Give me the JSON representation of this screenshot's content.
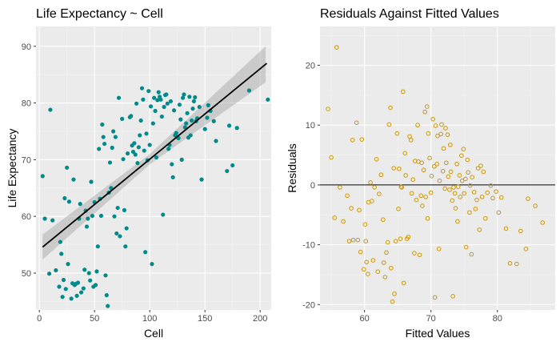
{
  "chart_data": [
    {
      "type": "scatter",
      "title": "Life Expectancy ~ Cell",
      "xlabel": "Cell",
      "ylabel": "Life Expectancy",
      "xlim": [
        -3,
        210
      ],
      "ylim": [
        43.5,
        93.5
      ],
      "xticks": [
        0,
        50,
        100,
        150,
        200
      ],
      "yticks": [
        50,
        60,
        70,
        80,
        90
      ],
      "grid": true,
      "point_color": "#008b8b",
      "fit_line": {
        "x": [
          3,
          206
        ],
        "y": [
          54.6,
          87.0
        ],
        "color": "#000000",
        "band_color": "#999999",
        "band_halfwidth": [
          {
            "x": 3,
            "w": 2.2
          },
          {
            "x": 100,
            "w": 0.9
          },
          {
            "x": 206,
            "w": 3.2
          }
        ]
      },
      "points": [
        [
          3,
          67.1
        ],
        [
          5,
          59.6
        ],
        [
          9,
          49.9
        ],
        [
          10,
          78.8
        ],
        [
          12,
          59.3
        ],
        [
          15,
          50.5
        ],
        [
          18,
          47.6
        ],
        [
          19,
          55.5
        ],
        [
          20,
          53.4
        ],
        [
          21,
          45.8
        ],
        [
          22,
          48.8
        ],
        [
          23,
          63.2
        ],
        [
          24,
          47.2
        ],
        [
          25,
          68.6
        ],
        [
          26,
          51.6
        ],
        [
          27,
          62.6
        ],
        [
          29,
          45.5
        ],
        [
          30,
          48.2
        ],
        [
          31,
          66.5
        ],
        [
          32,
          47.9
        ],
        [
          33,
          48.1
        ],
        [
          34,
          46.0
        ],
        [
          35,
          48.3
        ],
        [
          36,
          59.6
        ],
        [
          37,
          62.2
        ],
        [
          38,
          46.6
        ],
        [
          40,
          47.3
        ],
        [
          41,
          50.6
        ],
        [
          42,
          61.0
        ],
        [
          43,
          58.2
        ],
        [
          44,
          59.6
        ],
        [
          45,
          50.0
        ],
        [
          46,
          48.7
        ],
        [
          47,
          66.1
        ],
        [
          48,
          60.1
        ],
        [
          49,
          47.6
        ],
        [
          50,
          62.5
        ],
        [
          51,
          47.9
        ],
        [
          52,
          50.3
        ],
        [
          53,
          54.7
        ],
        [
          54,
          71.9
        ],
        [
          55,
          63.1
        ],
        [
          56,
          60.1
        ],
        [
          57,
          76.2
        ],
        [
          58,
          74.0
        ],
        [
          59,
          72.8
        ],
        [
          60,
          49.6
        ],
        [
          61,
          46.1
        ],
        [
          62,
          44.2
        ],
        [
          63,
          64.2
        ],
        [
          64,
          69.5
        ],
        [
          65,
          65.0
        ],
        [
          66,
          72.1
        ],
        [
          67,
          75.0
        ],
        [
          68,
          60.0
        ],
        [
          69,
          74.0
        ],
        [
          70,
          57.0
        ],
        [
          71,
          61.5
        ],
        [
          72,
          80.9
        ],
        [
          73,
          56.5
        ],
        [
          75,
          77.2
        ],
        [
          76,
          70.1
        ],
        [
          77,
          61.1
        ],
        [
          78,
          54.7
        ],
        [
          79,
          57.9
        ],
        [
          80,
          71.1
        ],
        [
          82,
          77.5
        ],
        [
          83,
          77.7
        ],
        [
          84,
          72.5
        ],
        [
          85,
          71.4
        ],
        [
          86,
          72.9
        ],
        [
          87,
          70.9
        ],
        [
          88,
          79.9
        ],
        [
          89,
          69.4
        ],
        [
          90,
          72.2
        ],
        [
          91,
          74.3
        ],
        [
          92,
          76.9
        ],
        [
          93,
          82.6
        ],
        [
          94,
          80.6
        ],
        [
          95,
          71.6
        ],
        [
          96,
          53.7
        ],
        [
          97,
          74.6
        ],
        [
          98,
          69.9
        ],
        [
          99,
          82.1
        ],
        [
          100,
          72.6
        ],
        [
          101,
          79.4
        ],
        [
          102,
          51.6
        ],
        [
          103,
          76.4
        ],
        [
          104,
          80.9
        ],
        [
          105,
          78.6
        ],
        [
          106,
          70.4
        ],
        [
          107,
          80.5
        ],
        [
          108,
          81.9
        ],
        [
          109,
          81.1
        ],
        [
          110,
          80.6
        ],
        [
          111,
          77.6
        ],
        [
          112,
          60.3
        ],
        [
          113,
          79.3
        ],
        [
          114,
          81.4
        ],
        [
          115,
          81.5
        ],
        [
          116,
          79.9
        ],
        [
          117,
          71.9
        ],
        [
          118,
          72.6
        ],
        [
          119,
          80.3
        ],
        [
          120,
          69.2
        ],
        [
          121,
          66.9
        ],
        [
          122,
          78.7
        ],
        [
          123,
          74.3
        ],
        [
          124,
          74.7
        ],
        [
          125,
          74.0
        ],
        [
          126,
          73.8
        ],
        [
          127,
          79.7
        ],
        [
          128,
          77.1
        ],
        [
          129,
          70.0
        ],
        [
          130,
          80.9
        ],
        [
          131,
          81.5
        ],
        [
          132,
          75.7
        ],
        [
          133,
          76.4
        ],
        [
          134,
          78.2
        ],
        [
          135,
          73.9
        ],
        [
          136,
          81.1
        ],
        [
          137,
          74.3
        ],
        [
          138,
          76.9
        ],
        [
          139,
          79.0
        ],
        [
          140,
          80.3
        ],
        [
          141,
          81.0
        ],
        [
          142,
          76.8
        ],
        [
          143,
          77.3
        ],
        [
          145,
          79.3
        ],
        [
          147,
          66.5
        ],
        [
          150,
          75.4
        ],
        [
          152,
          77.4
        ],
        [
          153,
          79.6
        ],
        [
          155,
          78.6
        ],
        [
          158,
          76.8
        ],
        [
          160,
          73.3
        ],
        [
          170,
          68.0
        ],
        [
          172,
          76.0
        ],
        [
          175,
          69.0
        ],
        [
          179,
          75.6
        ],
        [
          190,
          82.2
        ],
        [
          207,
          80.6
        ]
      ]
    },
    {
      "type": "scatter",
      "title": "Residuals Against Fitted Values",
      "xlabel": "Fitted Values",
      "ylabel": "Residuals",
      "xlim": [
        53.3,
        88.7
      ],
      "ylim": [
        -20.9,
        26.5
      ],
      "xticks": [
        60,
        70,
        80
      ],
      "yticks": [
        -20,
        -10,
        0,
        10,
        20
      ],
      "grid": true,
      "point_color": "#cd9600",
      "hline": 0,
      "points": [
        [
          54.5,
          12.7
        ],
        [
          55,
          4.6
        ],
        [
          55.5,
          -5.5
        ],
        [
          55.8,
          23
        ],
        [
          56.3,
          -0.4
        ],
        [
          56.8,
          -6.1
        ],
        [
          57.4,
          -1.8
        ],
        [
          57.7,
          -9.4
        ],
        [
          58,
          -3.9
        ],
        [
          58.2,
          7.5
        ],
        [
          58.3,
          -9.2
        ],
        [
          58.8,
          10.4
        ],
        [
          59,
          -9.2
        ],
        [
          59.2,
          -4.2
        ],
        [
          59.4,
          -11.2
        ],
        [
          59.6,
          7.6
        ],
        [
          59.9,
          -14.1
        ],
        [
          60.1,
          -6.6
        ],
        [
          60.2,
          -9.4
        ],
        [
          60.3,
          -12.9
        ],
        [
          60.5,
          -14.9
        ],
        [
          60.6,
          -2.9
        ],
        [
          60.9,
          0.4
        ],
        [
          61.1,
          -2.7
        ],
        [
          61.3,
          -12.6
        ],
        [
          61.5,
          -0.4
        ],
        [
          61.8,
          4.3
        ],
        [
          62,
          -14.5
        ],
        [
          62.2,
          -1.5
        ],
        [
          62.5,
          1.7
        ],
        [
          62.8,
          -5.8
        ],
        [
          62.9,
          -13
        ],
        [
          63.1,
          -15.4
        ],
        [
          63.3,
          -11.3
        ],
        [
          63.5,
          -9.6
        ],
        [
          63.7,
          10.1
        ],
        [
          63.9,
          12.9
        ],
        [
          64,
          -13.9
        ],
        [
          64.2,
          -19.5
        ],
        [
          64.4,
          2.8
        ],
        [
          64.5,
          -18.2
        ],
        [
          64.7,
          -9.4
        ],
        [
          64.9,
          8.6
        ],
        [
          65.1,
          -4
        ],
        [
          65.2,
          2.7
        ],
        [
          65.4,
          -9
        ],
        [
          65.5,
          -0.3
        ],
        [
          65.6,
          -0.4
        ],
        [
          65.8,
          15.6
        ],
        [
          65.9,
          -16.4
        ],
        [
          66.1,
          5.3
        ],
        [
          66.2,
          1.6
        ],
        [
          66.4,
          -9
        ],
        [
          66.6,
          -8.7
        ],
        [
          66.8,
          8.1
        ],
        [
          67,
          7.5
        ],
        [
          67.1,
          -1.4
        ],
        [
          67.3,
          0.9
        ],
        [
          67.5,
          -11.4
        ],
        [
          67.6,
          4
        ],
        [
          67.8,
          -2.5
        ],
        [
          68,
          10
        ],
        [
          68.1,
          3.9
        ],
        [
          68.3,
          -11.7
        ],
        [
          68.5,
          -1.8
        ],
        [
          68.6,
          3.7
        ],
        [
          68.7,
          -3.5
        ],
        [
          68.9,
          2.5
        ],
        [
          69.1,
          12.2
        ],
        [
          69.2,
          -2
        ],
        [
          69.4,
          13.1
        ],
        [
          69.5,
          -5.6
        ],
        [
          69.6,
          8.6
        ],
        [
          69.8,
          4.5
        ],
        [
          70.0,
          -1.3
        ],
        [
          70.1,
          1.5
        ],
        [
          70.3,
          11
        ],
        [
          70.5,
          3.1
        ],
        [
          70.6,
          -18.8
        ],
        [
          70.7,
          9.9
        ],
        [
          70.9,
          3.5
        ],
        [
          71.0,
          8.2
        ],
        [
          71.2,
          -10.7
        ],
        [
          71.3,
          0.7
        ],
        [
          71.5,
          8.5
        ],
        [
          71.6,
          10.1
        ],
        [
          71.8,
          2.3
        ],
        [
          71.9,
          6.1
        ],
        [
          72.1,
          -0.6
        ],
        [
          72.2,
          9.5
        ],
        [
          72.3,
          3.7
        ],
        [
          72.5,
          8.4
        ],
        [
          72.6,
          1.4
        ],
        [
          72.8,
          -0.8
        ],
        [
          72.9,
          6.7
        ],
        [
          73,
          2.2
        ],
        [
          73.2,
          -2.6
        ],
        [
          73.3,
          -18.6
        ],
        [
          73.4,
          -0.4
        ],
        [
          73.6,
          -1.4
        ],
        [
          73.7,
          -3.9
        ],
        [
          73.9,
          3.5
        ],
        [
          74.0,
          -6.1
        ],
        [
          74.1,
          -0.3
        ],
        [
          74.3,
          1.6
        ],
        [
          74.4,
          -2
        ],
        [
          74.6,
          4.9
        ],
        [
          74.7,
          0.7
        ],
        [
          74.9,
          6
        ],
        [
          75.0,
          -1.4
        ],
        [
          75.2,
          1
        ],
        [
          75.3,
          -10.4
        ],
        [
          75.5,
          4.2
        ],
        [
          75.6,
          2.1
        ],
        [
          75.8,
          -4.6
        ],
        [
          75.9,
          -0.1
        ],
        [
          76.1,
          -11.6
        ],
        [
          76.2,
          1.3
        ],
        [
          76.5,
          -1.2
        ],
        [
          76.7,
          -4
        ],
        [
          76.9,
          -2.5
        ],
        [
          77.1,
          2.8
        ],
        [
          77.3,
          -7.5
        ],
        [
          77.5,
          3.2
        ],
        [
          77.7,
          -2
        ],
        [
          77.9,
          2.2
        ],
        [
          78.2,
          -5.6
        ],
        [
          78.5,
          -1.3
        ],
        [
          79,
          -0.1
        ],
        [
          79.3,
          -2.2
        ],
        [
          79.8,
          -1.1
        ],
        [
          80.2,
          -4.6
        ],
        [
          80.6,
          -2.1
        ],
        [
          81.3,
          -7.3
        ],
        [
          81.9,
          -13.1
        ],
        [
          82.9,
          -13.2
        ],
        [
          83.5,
          -7.7
        ],
        [
          84.3,
          -10.7
        ],
        [
          84.6,
          -2.3
        ],
        [
          85.7,
          -3.5
        ],
        [
          86.8,
          -6.3
        ]
      ]
    }
  ]
}
